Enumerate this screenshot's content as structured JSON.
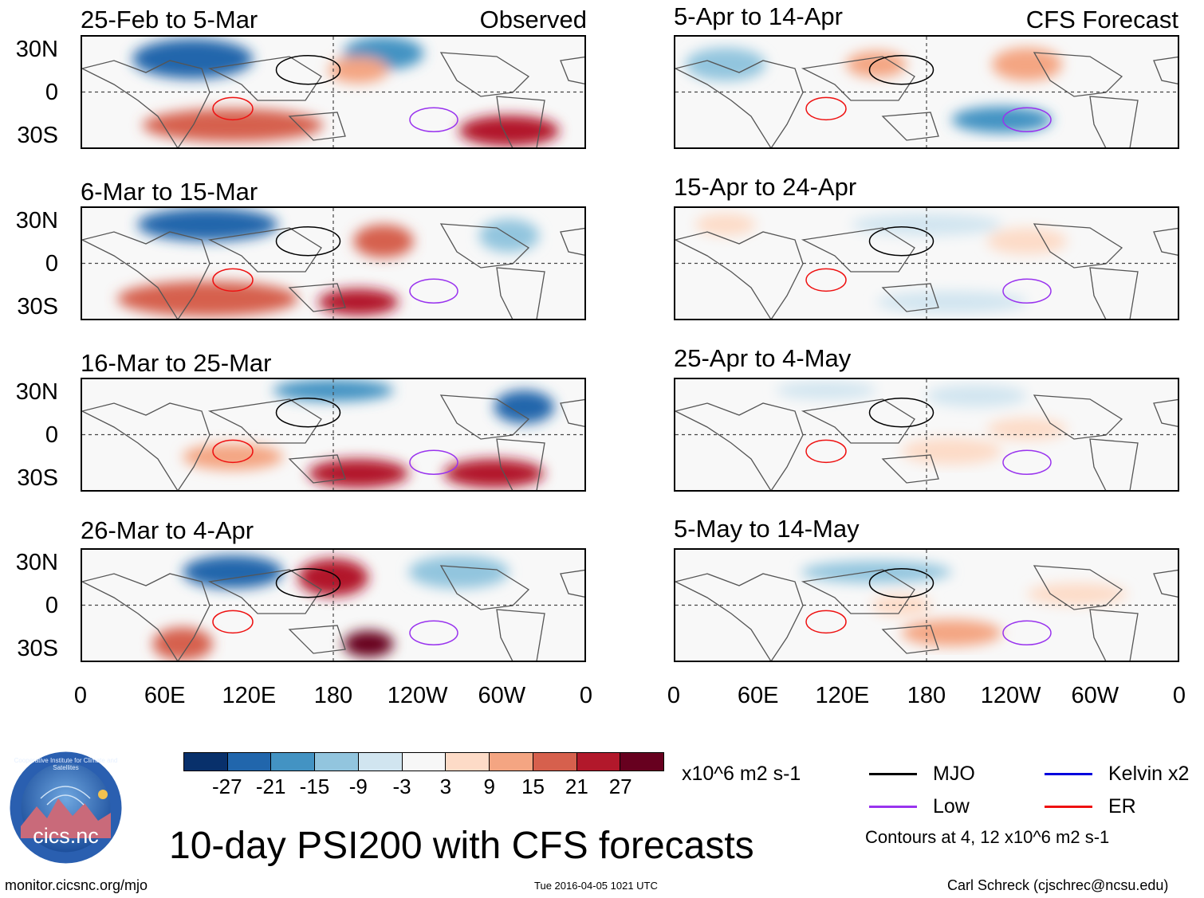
{
  "panels_left": [
    {
      "title": "25-Feb to 5-Mar",
      "tag": "Observed"
    },
    {
      "title": "6-Mar to 15-Mar",
      "tag": ""
    },
    {
      "title": "16-Mar to 25-Mar",
      "tag": ""
    },
    {
      "title": "26-Mar to 4-Apr",
      "tag": ""
    }
  ],
  "panels_right": [
    {
      "title": "5-Apr to 14-Apr",
      "tag": "CFS Forecast"
    },
    {
      "title": "15-Apr to 24-Apr",
      "tag": ""
    },
    {
      "title": "25-Apr to 4-May",
      "tag": ""
    },
    {
      "title": "5-May to 14-May",
      "tag": ""
    }
  ],
  "lat_labels": [
    "30N",
    "0",
    "30S"
  ],
  "lon_labels": [
    "0",
    "60E",
    "120E",
    "180",
    "120W",
    "60W",
    "0"
  ],
  "colorbar": {
    "colors": [
      "#08306b",
      "#2166ac",
      "#4393c3",
      "#92c5de",
      "#d1e5f0",
      "#f7f7f7",
      "#fddbc7",
      "#f4a582",
      "#d6604d",
      "#b2182b",
      "#67001f"
    ],
    "labels": [
      "-27",
      "-21",
      "-15",
      "-9",
      "-3",
      "3",
      "9",
      "15",
      "21",
      "27"
    ],
    "units": "x10^6 m2 s-1"
  },
  "legend": {
    "items": [
      {
        "label": "MJO",
        "color": "#000000"
      },
      {
        "label": "Kelvin x2",
        "color": "#0000dd"
      },
      {
        "label": "Low",
        "color": "#9933ee"
      },
      {
        "label": "ER",
        "color": "#ee1111"
      }
    ],
    "note": "Contours at 4, 12 x10^6 m2 s-1"
  },
  "main_title": "10-day PSI200 with CFS forecasts",
  "logo_text": "cics.nc",
  "logo_ring_text": "Cooperative Institute for Climate and Satellites",
  "footer": {
    "left": "monitor.cicsnc.org/mjo",
    "center": "Tue 2016-04-05 1021 UTC",
    "right": "Carl Schreck (cjschrec@ncsu.edu)"
  }
}
